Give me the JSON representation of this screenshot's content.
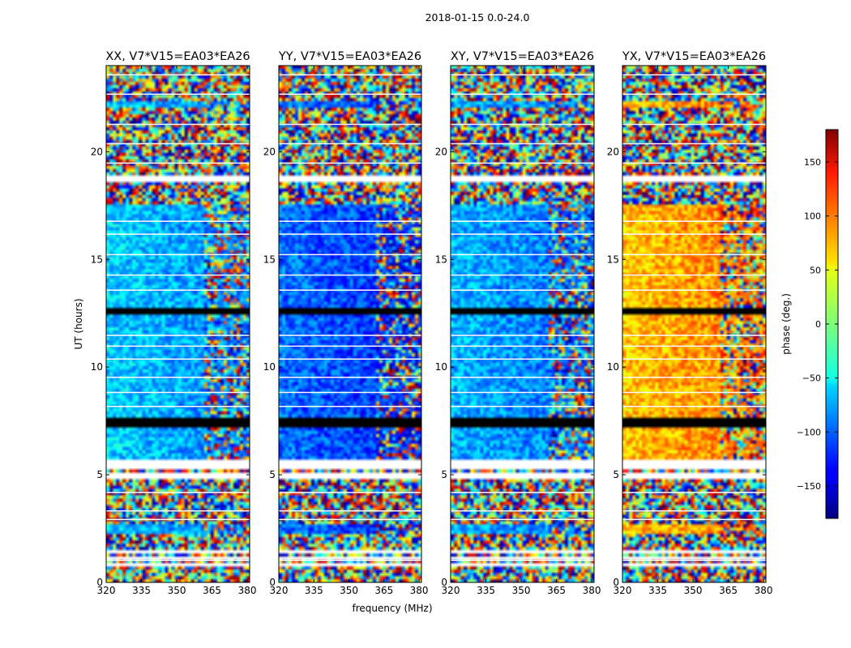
{
  "figure": {
    "suptitle": "2018-01-15 0.0-24.0",
    "xlabel": "frequency (MHz)",
    "ylabel": "UT (hours)"
  },
  "chart_data": [
    {
      "type": "heatmap",
      "title": "XX, V7*V15=EA03*EA26",
      "xlim": [
        320,
        381
      ],
      "ylim": [
        0,
        24
      ],
      "xticks": [
        "320",
        "335",
        "350",
        "365",
        "380"
      ],
      "yticks": [
        "0",
        "5",
        "10",
        "15",
        "20"
      ],
      "dominant_phase_deg": -90
    },
    {
      "type": "heatmap",
      "title": "YY, V7*V15=EA03*EA26",
      "xlim": [
        320,
        381
      ],
      "ylim": [
        0,
        24
      ],
      "xticks": [
        "320",
        "335",
        "350",
        "365",
        "380"
      ],
      "yticks": [
        "0",
        "5",
        "10",
        "15",
        "20"
      ],
      "dominant_phase_deg": -125
    },
    {
      "type": "heatmap",
      "title": "XY, V7*V15=EA03*EA26",
      "xlim": [
        320,
        381
      ],
      "ylim": [
        0,
        24
      ],
      "xticks": [
        "320",
        "335",
        "350",
        "365",
        "380"
      ],
      "yticks": [
        "0",
        "5",
        "10",
        "15",
        "20"
      ],
      "dominant_phase_deg": -100
    },
    {
      "type": "heatmap",
      "title": "YX, V7*V15=EA03*EA26",
      "xlim": [
        320,
        381
      ],
      "ylim": [
        0,
        24
      ],
      "xticks": [
        "320",
        "335",
        "350",
        "365",
        "380"
      ],
      "yticks": [
        "0",
        "5",
        "10",
        "15",
        "20"
      ],
      "dominant_phase_deg": 95
    }
  ],
  "colorbar": {
    "label": "phase (deg.)",
    "range": [
      -180,
      180
    ],
    "tick_values": [
      -150,
      -100,
      -50,
      0,
      50,
      100,
      150
    ],
    "tick_labels": [
      "−150",
      "−100",
      "−50",
      "0",
      "50",
      "100",
      "150"
    ],
    "colormap": "jet"
  }
}
